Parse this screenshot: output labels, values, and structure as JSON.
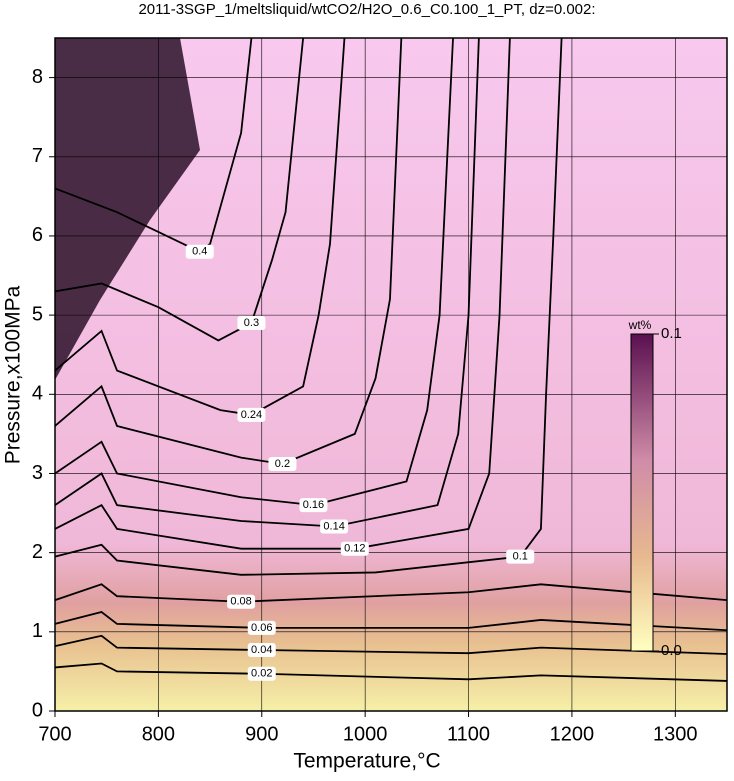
{
  "chart_data": {
    "type": "contour",
    "title": "2011-3SGP_1/meltsliquid/wtCO2/H2O_0.6_C0.100_1_PT, dz=0.002:",
    "x_label": "Temperature,°C",
    "y_label": "Pressure,x100MPa",
    "xlim": [
      700,
      1350
    ],
    "ylim": [
      0,
      8.5
    ],
    "xticks": [
      700,
      800,
      900,
      1000,
      1100,
      1200,
      1300
    ],
    "yticks": [
      0,
      1,
      2,
      3,
      4,
      5,
      6,
      7,
      8
    ],
    "grid": true,
    "color": "#000000",
    "contours": [
      {
        "level": 0.02,
        "x": [
          700,
          745,
          760,
          900,
          1100,
          1170,
          1350
        ],
        "y": [
          0.55,
          0.6,
          0.5,
          0.47,
          0.4,
          0.45,
          0.38
        ]
      },
      {
        "level": 0.04,
        "x": [
          700,
          745,
          760,
          900,
          1100,
          1170,
          1350
        ],
        "y": [
          0.82,
          0.95,
          0.8,
          0.77,
          0.73,
          0.8,
          0.72
        ]
      },
      {
        "level": 0.06,
        "x": [
          700,
          745,
          760,
          900,
          1100,
          1170,
          1350
        ],
        "y": [
          1.1,
          1.25,
          1.1,
          1.05,
          1.05,
          1.15,
          1.02
        ]
      },
      {
        "level": 0.08,
        "x": [
          700,
          745,
          760,
          880,
          1100,
          1170,
          1350
        ],
        "y": [
          1.4,
          1.6,
          1.45,
          1.38,
          1.5,
          1.6,
          1.4
        ]
      },
      {
        "level": 0.1,
        "x": [
          700,
          745,
          760,
          880,
          1010,
          1150,
          1170,
          1175,
          1182,
          1190
        ],
        "y": [
          1.95,
          2.1,
          1.9,
          1.72,
          1.75,
          1.95,
          2.3,
          4,
          6,
          8.5
        ]
      },
      {
        "level": 0.12,
        "x": [
          700,
          745,
          760,
          880,
          990,
          1100,
          1120,
          1130,
          1140
        ],
        "y": [
          2.3,
          2.6,
          2.3,
          2.05,
          2.05,
          2.3,
          3,
          5,
          8.5
        ]
      },
      {
        "level": 0.14,
        "x": [
          700,
          745,
          760,
          880,
          970,
          1070,
          1090,
          1100,
          1110
        ],
        "y": [
          2.6,
          3.0,
          2.6,
          2.4,
          2.33,
          2.6,
          3.5,
          5,
          8.5
        ]
      },
      {
        "level": 0.16,
        "x": [
          700,
          745,
          760,
          880,
          950,
          1040,
          1060,
          1072,
          1085
        ],
        "y": [
          3.0,
          3.4,
          3.0,
          2.7,
          2.6,
          2.9,
          3.8,
          5,
          8.5
        ]
      },
      {
        "level": 0.2,
        "x": [
          700,
          745,
          760,
          880,
          920,
          990,
          1010,
          1024,
          1035
        ],
        "y": [
          3.6,
          4.1,
          3.6,
          3.2,
          3.12,
          3.5,
          4.2,
          5.2,
          8.5
        ]
      },
      {
        "level": 0.24,
        "x": [
          700,
          745,
          760,
          860,
          890,
          940,
          955,
          966,
          980
        ],
        "y": [
          4.3,
          4.8,
          4.3,
          3.8,
          3.74,
          4.1,
          5,
          5.9,
          8.5
        ]
      },
      {
        "level": 0.3,
        "x": [
          700,
          745,
          800,
          858,
          890,
          910,
          923,
          940
        ],
        "y": [
          5.3,
          5.4,
          5.1,
          4.68,
          4.9,
          5.7,
          6.3,
          8.5
        ]
      },
      {
        "level": 0.4,
        "x": [
          700,
          760,
          800,
          840,
          850,
          880,
          890
        ],
        "y": [
          6.6,
          6.3,
          6.05,
          5.8,
          5.9,
          7.3,
          8.5
        ]
      }
    ],
    "colorbar": {
      "label": "wt%",
      "lim": [
        0,
        0.1
      ],
      "ticks": [
        {
          "value": 0,
          "label": "0.0"
        },
        0.1
      ]
    }
  }
}
